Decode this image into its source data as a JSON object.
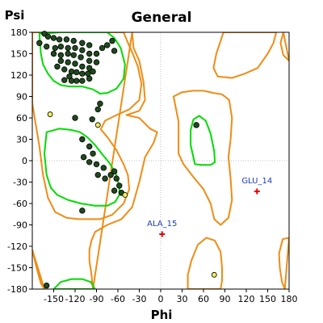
{
  "chart_data": {
    "type": "scatter",
    "title": "General",
    "xlabel": "Phi",
    "ylabel": "Psi",
    "xlim": [
      -180,
      180
    ],
    "ylim": [
      -180,
      180
    ],
    "xticks": [
      -150,
      -120,
      -90,
      -60,
      -30,
      0,
      30,
      60,
      90,
      120,
      150,
      180
    ],
    "xtick_labels": [
      "-150",
      "-120",
      "-90",
      "-60",
      "-30",
      "0",
      "30",
      "60",
      "90",
      "120",
      "150",
      "180"
    ],
    "yticks": [
      180,
      150,
      120,
      90,
      60,
      30,
      0,
      -30,
      -60,
      -90,
      -120,
      -150,
      -180
    ],
    "ytick_labels": [
      "180",
      "150",
      "120",
      "90",
      "60",
      "30",
      "0",
      "-30",
      "-60",
      "-90",
      "-120",
      "-150",
      "-180"
    ],
    "grid": "dotted zero lines",
    "colors": {
      "favoured": "#00dc00",
      "allowed": "#f08c14",
      "favoured_point": "#1e4a1e",
      "allowed_point": "#f0f05a",
      "outlier": "#e60000",
      "outlier_label": "#1e3cb4"
    },
    "contours": {
      "favoured": [
        [
          [
            -170,
            178
          ],
          [
            -168,
            150
          ],
          [
            -165,
            135
          ],
          [
            -158,
            122
          ],
          [
            -150,
            112
          ],
          [
            -140,
            106
          ],
          [
            -128,
            104
          ],
          [
            -110,
            104
          ],
          [
            -95,
            100
          ],
          [
            -85,
            94
          ],
          [
            -75,
            95
          ],
          [
            -62,
            101
          ],
          [
            -52,
            115
          ],
          [
            -50,
            135
          ],
          [
            -56,
            158
          ],
          [
            -65,
            172
          ],
          [
            -75,
            180
          ],
          [
            -110,
            180
          ],
          [
            -140,
            180
          ]
        ],
        [
          [
            -160,
            40
          ],
          [
            -163,
            10
          ],
          [
            -160,
            -20
          ],
          [
            -154,
            -38
          ],
          [
            -145,
            -48
          ],
          [
            -130,
            -55
          ],
          [
            -112,
            -60
          ],
          [
            -92,
            -63
          ],
          [
            -75,
            -63
          ],
          [
            -64,
            -58
          ],
          [
            -58,
            -48
          ],
          [
            -58,
            -36
          ],
          [
            -63,
            -18
          ],
          [
            -72,
            -3
          ],
          [
            -82,
            9
          ],
          [
            -92,
            22
          ],
          [
            -103,
            33
          ],
          [
            -113,
            40
          ],
          [
            -125,
            43
          ],
          [
            -142,
            45
          ]
        ],
        [
          [
            48,
            -5
          ],
          [
            42,
            22
          ],
          [
            42,
            43
          ],
          [
            46,
            58
          ],
          [
            54,
            63
          ],
          [
            63,
            56
          ],
          [
            70,
            38
          ],
          [
            75,
            13
          ],
          [
            76,
            -2
          ],
          [
            70,
            -6
          ],
          [
            58,
            -6
          ]
        ],
        [
          [
            -150,
            -180
          ],
          [
            -140,
            -170
          ],
          [
            -125,
            -166
          ],
          [
            -110,
            -166
          ],
          [
            -98,
            -170
          ],
          [
            -92,
            -180
          ]
        ]
      ],
      "allowed": [
        [
          [
            -180,
            180
          ],
          [
            -180,
            80
          ],
          [
            -170,
            20
          ],
          [
            -165,
            -20
          ],
          [
            -158,
            -52
          ],
          [
            -148,
            -72
          ],
          [
            -132,
            -80
          ],
          [
            -115,
            -82
          ],
          [
            -100,
            -82
          ],
          [
            -85,
            -82
          ],
          [
            -68,
            -76
          ],
          [
            -52,
            -60
          ],
          [
            -44,
            -40
          ],
          [
            -46,
            -20
          ],
          [
            -52,
            -5
          ],
          [
            -62,
            15
          ],
          [
            -74,
            32
          ],
          [
            -84,
            44
          ],
          [
            -78,
            56
          ],
          [
            -62,
            64
          ],
          [
            -44,
            72
          ],
          [
            -30,
            85
          ],
          [
            -27,
            108
          ],
          [
            -32,
            132
          ],
          [
            -40,
            152
          ],
          [
            -48,
            170
          ],
          [
            -52,
            180
          ]
        ],
        [
          [
            -40,
            180
          ],
          [
            -38,
            158
          ],
          [
            -30,
            140
          ],
          [
            -24,
            110
          ],
          [
            -22,
            85
          ],
          [
            -30,
            70
          ],
          [
            -48,
            64
          ],
          [
            -30,
            60
          ],
          [
            -15,
            45
          ],
          [
            -5,
            40
          ],
          [
            -10,
            25
          ],
          [
            -22,
            5
          ],
          [
            -30,
            -30
          ],
          [
            -40,
            -65
          ],
          [
            -55,
            -82
          ],
          [
            -75,
            -90
          ],
          [
            -92,
            -100
          ],
          [
            -97,
            -112
          ],
          [
            -100,
            -125
          ],
          [
            -100,
            -140
          ],
          [
            -97,
            -160
          ],
          [
            -95,
            -180
          ]
        ],
        [
          [
            18,
            90
          ],
          [
            25,
            55
          ],
          [
            25,
            30
          ],
          [
            25,
            10
          ],
          [
            32,
            -5
          ],
          [
            45,
            -22
          ],
          [
            60,
            -40
          ],
          [
            70,
            -60
          ],
          [
            75,
            -82
          ],
          [
            84,
            -90
          ],
          [
            95,
            -80
          ],
          [
            100,
            -55
          ],
          [
            98,
            -25
          ],
          [
            95,
            5
          ],
          [
            98,
            30
          ],
          [
            100,
            60
          ],
          [
            96,
            85
          ],
          [
            86,
            93
          ],
          [
            74,
            95
          ],
          [
            60,
            98
          ],
          [
            45,
            98
          ],
          [
            30,
            96
          ]
        ],
        [
          [
            38,
            -180
          ],
          [
            38,
            -160
          ],
          [
            43,
            -140
          ],
          [
            52,
            -118
          ],
          [
            64,
            -108
          ],
          [
            76,
            -112
          ],
          [
            84,
            -128
          ],
          [
            86,
            -150
          ],
          [
            86,
            -168
          ],
          [
            84,
            -180
          ]
        ],
        [
          [
            88,
            180
          ],
          [
            84,
            168
          ],
          [
            78,
            150
          ],
          [
            74,
            130
          ],
          [
            80,
            118
          ],
          [
            100,
            116
          ],
          [
            118,
            122
          ],
          [
            136,
            130
          ],
          [
            150,
            150
          ],
          [
            158,
            165
          ],
          [
            162,
            180
          ]
        ],
        [
          [
            180,
            -108
          ],
          [
            171,
            -110
          ],
          [
            166,
            -130
          ],
          [
            167,
            -150
          ],
          [
            170,
            -170
          ],
          [
            174,
            -180
          ]
        ],
        [
          [
            180,
            140
          ],
          [
            172,
            148
          ],
          [
            168,
            165
          ],
          [
            172,
            180
          ]
        ],
        [
          [
            -180,
            -125
          ],
          [
            -174,
            -150
          ],
          [
            -168,
            -172
          ],
          [
            -163,
            -180
          ]
        ]
      ]
    },
    "favoured_points": [
      [
        -163,
        178
      ],
      [
        -158,
        174
      ],
      [
        -150,
        172
      ],
      [
        -142,
        170
      ],
      [
        -132,
        170
      ],
      [
        -122,
        168
      ],
      [
        -110,
        165
      ],
      [
        -100,
        162
      ],
      [
        -170,
        165
      ],
      [
        -160,
        160
      ],
      [
        -148,
        158
      ],
      [
        -140,
        160
      ],
      [
        -130,
        158
      ],
      [
        -120,
        158
      ],
      [
        -110,
        155
      ],
      [
        -100,
        150
      ],
      [
        -90,
        150
      ],
      [
        -150,
        150
      ],
      [
        -140,
        148
      ],
      [
        -130,
        150
      ],
      [
        -122,
        148
      ],
      [
        -112,
        145
      ],
      [
        -100,
        140
      ],
      [
        -90,
        138
      ],
      [
        -140,
        140
      ],
      [
        -130,
        138
      ],
      [
        -120,
        136
      ],
      [
        -110,
        132
      ],
      [
        -100,
        130
      ],
      [
        -135,
        128
      ],
      [
        -125,
        125
      ],
      [
        -118,
        124
      ],
      [
        -110,
        122
      ],
      [
        -102,
        122
      ],
      [
        -95,
        125
      ],
      [
        -145,
        132
      ],
      [
        -128,
        118
      ],
      [
        -125,
        112
      ],
      [
        -118,
        112
      ],
      [
        -110,
        112
      ],
      [
        -100,
        115
      ],
      [
        -135,
        113
      ],
      [
        -82,
        158
      ],
      [
        -75,
        162
      ],
      [
        -68,
        168
      ],
      [
        -65,
        154
      ],
      [
        -85,
        80
      ],
      [
        -88,
        72
      ],
      [
        -96,
        58
      ],
      [
        -120,
        60
      ],
      [
        -110,
        30
      ],
      [
        -100,
        20
      ],
      [
        -95,
        10
      ],
      [
        -108,
        5
      ],
      [
        -100,
        -2
      ],
      [
        -90,
        -5
      ],
      [
        -80,
        -10
      ],
      [
        -88,
        -20
      ],
      [
        -78,
        -25
      ],
      [
        -70,
        -20
      ],
      [
        -65,
        -15
      ],
      [
        -62,
        -25
      ],
      [
        -58,
        -35
      ],
      [
        -65,
        -42
      ],
      [
        -55,
        -45
      ],
      [
        -110,
        -70
      ],
      [
        -160,
        -175
      ],
      [
        50,
        50
      ]
    ],
    "allowed_points": [
      [
        -155,
        65
      ],
      [
        -88,
        50
      ],
      [
        -50,
        -48
      ],
      [
        75,
        -160
      ]
    ],
    "outliers": [
      {
        "label": "GLU_14",
        "x": 135,
        "y": -43
      },
      {
        "label": "ALA_15",
        "x": 2,
        "y": -103
      }
    ]
  }
}
